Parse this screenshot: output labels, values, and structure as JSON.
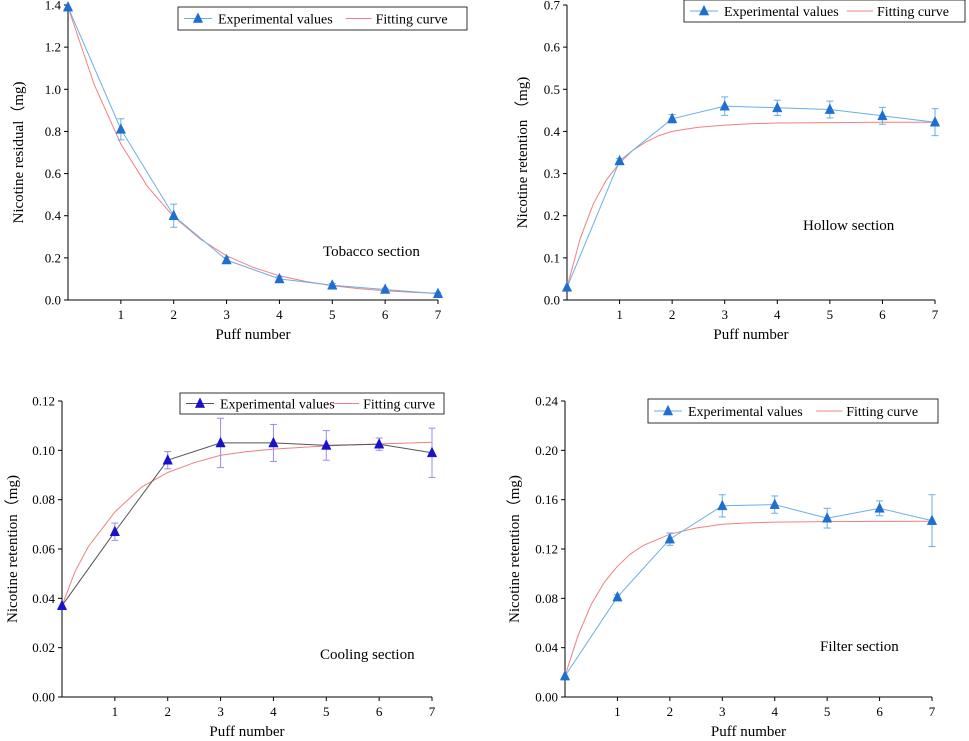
{
  "chart_data": [
    {
      "type": "line",
      "title": "",
      "annotation": "Tobacco section",
      "xlabel": "Puff number",
      "ylabel": "Nicotine residual（mg)",
      "xlim": [
        0,
        7
      ],
      "ylim": [
        0,
        1.4
      ],
      "x_ticks": [
        1,
        2,
        3,
        4,
        5,
        6,
        7
      ],
      "y_ticks": [
        0.0,
        0.2,
        0.4,
        0.6,
        0.8,
        1.0,
        1.2,
        1.4
      ],
      "y_tick_labels": [
        "0.0",
        "0.2",
        "0.4",
        "0.6",
        "0.8",
        "1.0",
        "1.2",
        "1.4"
      ],
      "legend_position": "top-right",
      "series": [
        {
          "name": "Experimental values",
          "x": [
            0,
            1,
            2,
            3,
            4,
            5,
            6,
            7
          ],
          "values": [
            1.39,
            0.81,
            0.4,
            0.19,
            0.1,
            0.07,
            0.05,
            0.03
          ],
          "errors": [
            0,
            0.05,
            0.055,
            0.012,
            0.01,
            0.008,
            0.006,
            0.005
          ],
          "marker_color": "#1f6fd1",
          "line_color": "#6aaee8"
        },
        {
          "name": "Fitting curve",
          "x": [
            0,
            0.5,
            1,
            1.5,
            2,
            2.5,
            3,
            3.5,
            4,
            4.5,
            5,
            5.5,
            6,
            6.5,
            7
          ],
          "values": [
            1.39,
            1.02,
            0.74,
            0.54,
            0.395,
            0.29,
            0.21,
            0.155,
            0.115,
            0.088,
            0.068,
            0.054,
            0.044,
            0.037,
            0.032
          ],
          "line_color": "#f08080"
        }
      ]
    },
    {
      "type": "line",
      "title": "",
      "annotation": "Hollow section",
      "xlabel": "Puff number",
      "ylabel": "Nicotine retention （mg)",
      "xlim": [
        0,
        7
      ],
      "ylim": [
        0,
        0.7
      ],
      "x_ticks": [
        1,
        2,
        3,
        4,
        5,
        6,
        7
      ],
      "y_ticks": [
        0.0,
        0.1,
        0.2,
        0.3,
        0.4,
        0.5,
        0.6,
        0.7
      ],
      "y_tick_labels": [
        "0.0",
        "0.1",
        "0.2",
        "0.3",
        "0.4",
        "0.5",
        "0.6",
        "0.7"
      ],
      "legend_position": "top-right",
      "series": [
        {
          "name": "Experimental values",
          "x": [
            0,
            1,
            2,
            3,
            4,
            5,
            6,
            7
          ],
          "values": [
            0.03,
            0.33,
            0.43,
            0.46,
            0.456,
            0.452,
            0.437,
            0.422
          ],
          "errors": [
            0,
            0.006,
            0.01,
            0.022,
            0.018,
            0.02,
            0.02,
            0.032
          ],
          "marker_color": "#1f6fd1",
          "line_color": "#6aaee8"
        },
        {
          "name": "Fitting curve",
          "x": [
            0,
            0.25,
            0.5,
            0.75,
            1,
            1.25,
            1.5,
            1.75,
            2,
            2.5,
            3,
            3.5,
            4,
            5,
            6,
            7
          ],
          "values": [
            0.03,
            0.145,
            0.228,
            0.285,
            0.325,
            0.355,
            0.375,
            0.39,
            0.4,
            0.41,
            0.415,
            0.418,
            0.42,
            0.421,
            0.422,
            0.422
          ],
          "line_color": "#f08080"
        }
      ]
    },
    {
      "type": "line",
      "title": "",
      "annotation": "Cooling section",
      "xlabel": "Puff number",
      "ylabel": "Nicotine retention（mg)",
      "xlim": [
        0,
        7
      ],
      "ylim": [
        0,
        0.12
      ],
      "x_ticks": [
        1,
        2,
        3,
        4,
        5,
        6,
        7
      ],
      "y_ticks": [
        0.0,
        0.02,
        0.04,
        0.06,
        0.08,
        0.1,
        0.12
      ],
      "y_tick_labels": [
        "0.00",
        "0.02",
        "0.04",
        "0.06",
        "0.08",
        "0.10",
        "0.12"
      ],
      "legend_position": "top-right",
      "series": [
        {
          "name": "Experimental values",
          "x": [
            0,
            1,
            2,
            3,
            4,
            5,
            6,
            7
          ],
          "values": [
            0.037,
            0.067,
            0.096,
            0.103,
            0.103,
            0.102,
            0.1025,
            0.099
          ],
          "errors": [
            0,
            0.0035,
            0.0035,
            0.01,
            0.0075,
            0.006,
            0.0025,
            0.01
          ],
          "marker_color": "#1a12c8",
          "line_color": "#555555",
          "error_color": "#9a8cf0"
        },
        {
          "name": "Fitting curve",
          "x": [
            0,
            0.25,
            0.5,
            0.75,
            1,
            1.5,
            2,
            2.5,
            3,
            3.5,
            4,
            5,
            6,
            7
          ],
          "values": [
            0.037,
            0.051,
            0.061,
            0.068,
            0.075,
            0.085,
            0.091,
            0.095,
            0.098,
            0.0995,
            0.1005,
            0.1018,
            0.1026,
            0.1033
          ],
          "line_color": "#f08080"
        }
      ]
    },
    {
      "type": "line",
      "title": "",
      "annotation": "Filter section",
      "xlabel": "Puff number",
      "ylabel": "Nicotine retention（mg)",
      "xlim": [
        0,
        7
      ],
      "ylim": [
        0,
        0.24
      ],
      "x_ticks": [
        1,
        2,
        3,
        4,
        5,
        6,
        7
      ],
      "y_ticks": [
        0.0,
        0.04,
        0.08,
        0.12,
        0.16,
        0.2,
        0.24
      ],
      "y_tick_labels": [
        "0.00",
        "0.04",
        "0.08",
        "0.12",
        "0.16",
        "0.20",
        "0.24"
      ],
      "legend_position": "top-right",
      "series": [
        {
          "name": "Experimental values",
          "x": [
            0,
            1,
            2,
            3,
            4,
            5,
            6,
            7
          ],
          "values": [
            0.017,
            0.081,
            0.128,
            0.155,
            0.156,
            0.145,
            0.153,
            0.143
          ],
          "errors": [
            0,
            0.002,
            0.005,
            0.009,
            0.007,
            0.008,
            0.006,
            0.021
          ],
          "marker_color": "#1f6fd1",
          "line_color": "#6aaee8"
        },
        {
          "name": "Fitting curve",
          "x": [
            0,
            0.25,
            0.5,
            0.75,
            1,
            1.25,
            1.5,
            2,
            2.5,
            3,
            3.5,
            4,
            5,
            6,
            7
          ],
          "values": [
            0.017,
            0.05,
            0.075,
            0.093,
            0.106,
            0.116,
            0.123,
            0.132,
            0.137,
            0.14,
            0.1412,
            0.1418,
            0.1422,
            0.1424,
            0.1425
          ],
          "line_color": "#f08080"
        }
      ]
    }
  ]
}
